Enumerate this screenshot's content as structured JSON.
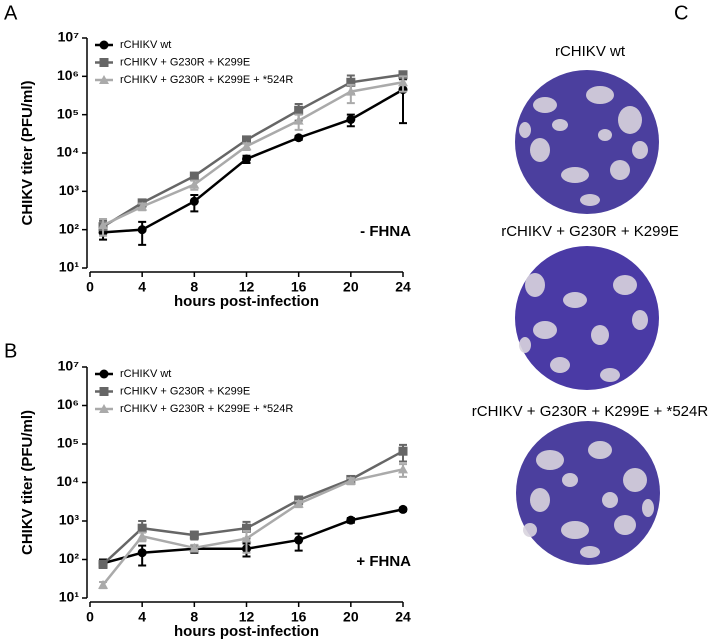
{
  "panel_labels": [
    "A",
    "B",
    "C"
  ],
  "plaque_labels": [
    "rCHIKV wt",
    "rCHIKV + G230R + K299E",
    "rCHIKV + G230R + K299E + *524R"
  ],
  "chart_data": [
    {
      "type": "line",
      "annotation": "- FHNA",
      "xlabel": "hours post-infection",
      "ylabel": "CHIKV titer (PFU/ml)",
      "x": [
        1,
        4,
        8,
        12,
        16,
        20,
        24
      ],
      "xlim": [
        0,
        24
      ],
      "xticks": [
        0,
        4,
        8,
        12,
        16,
        20,
        24
      ],
      "ylim": [
        10,
        10000000
      ],
      "yscale": "log",
      "legend": "upper left",
      "yticks": [
        {
          "value": 10,
          "label": "10¹"
        },
        {
          "value": 100,
          "label": "10²"
        },
        {
          "value": 1000,
          "label": "10³"
        },
        {
          "value": 10000,
          "label": "10⁴"
        },
        {
          "value": 100000,
          "label": "10⁵"
        },
        {
          "value": 1000000,
          "label": "10⁶"
        },
        {
          "value": 10000000,
          "label": "10⁷"
        }
      ],
      "series": [
        {
          "name": "rCHIKV wt",
          "color": "#000000",
          "marker": "circle",
          "values": [
            85,
            100,
            550,
            7000,
            25000,
            75000,
            450000
          ],
          "errors": [
            30,
            60,
            250,
            1500,
            3000,
            25000,
            390000
          ]
        },
        {
          "name": "rCHIKV + G230R + K299E",
          "color": "#666666",
          "marker": "square",
          "values": [
            120,
            500,
            2500,
            22000,
            130000,
            700000,
            1100000
          ],
          "errors": [
            50,
            100,
            500,
            4000,
            60000,
            350000,
            200000
          ]
        },
        {
          "name": "rCHIKV + G230R + K299E + *524R",
          "color": "#aaaaaa",
          "marker": "triangle",
          "values": [
            130,
            400,
            1500,
            15000,
            70000,
            400000,
            700000
          ],
          "errors": [
            60,
            80,
            400,
            3000,
            30000,
            200000,
            300000
          ]
        }
      ]
    },
    {
      "type": "line",
      "annotation": "+ FHNA",
      "xlabel": "hours post-infection",
      "ylabel": "CHIKV titer (PFU/ml)",
      "x": [
        1,
        4,
        8,
        12,
        16,
        20,
        24
      ],
      "xlim": [
        0,
        24
      ],
      "xticks": [
        0,
        4,
        8,
        12,
        16,
        20,
        24
      ],
      "ylim": [
        10,
        10000000
      ],
      "yscale": "log",
      "legend": "upper left",
      "yticks": [
        {
          "value": 10,
          "label": "10¹"
        },
        {
          "value": 100,
          "label": "10²"
        },
        {
          "value": 1000,
          "label": "10³"
        },
        {
          "value": 10000,
          "label": "10⁴"
        },
        {
          "value": 100000,
          "label": "10⁵"
        },
        {
          "value": 1000000,
          "label": "10⁶"
        },
        {
          "value": 10000000,
          "label": "10⁷"
        }
      ],
      "series": [
        {
          "name": "rCHIKV wt",
          "color": "#000000",
          "marker": "circle",
          "values": [
            80,
            150,
            190,
            190,
            320,
            1050,
            2000
          ],
          "errors": [
            20,
            80,
            40,
            70,
            150,
            150,
            200
          ]
        },
        {
          "name": "rCHIKV + G230R + K299E",
          "color": "#666666",
          "marker": "square",
          "values": [
            75,
            650,
            430,
            650,
            3500,
            12000,
            65000
          ],
          "errors": [
            15,
            350,
            100,
            300,
            800,
            2500,
            30000
          ]
        },
        {
          "name": "rCHIKV + G230R + K299E + *524R",
          "color": "#aaaaaa",
          "marker": "triangle",
          "values": [
            22,
            400,
            200,
            350,
            2800,
            11000,
            22000
          ],
          "errors": [
            4,
            100,
            40,
            200,
            500,
            2000,
            8000
          ]
        }
      ]
    }
  ]
}
